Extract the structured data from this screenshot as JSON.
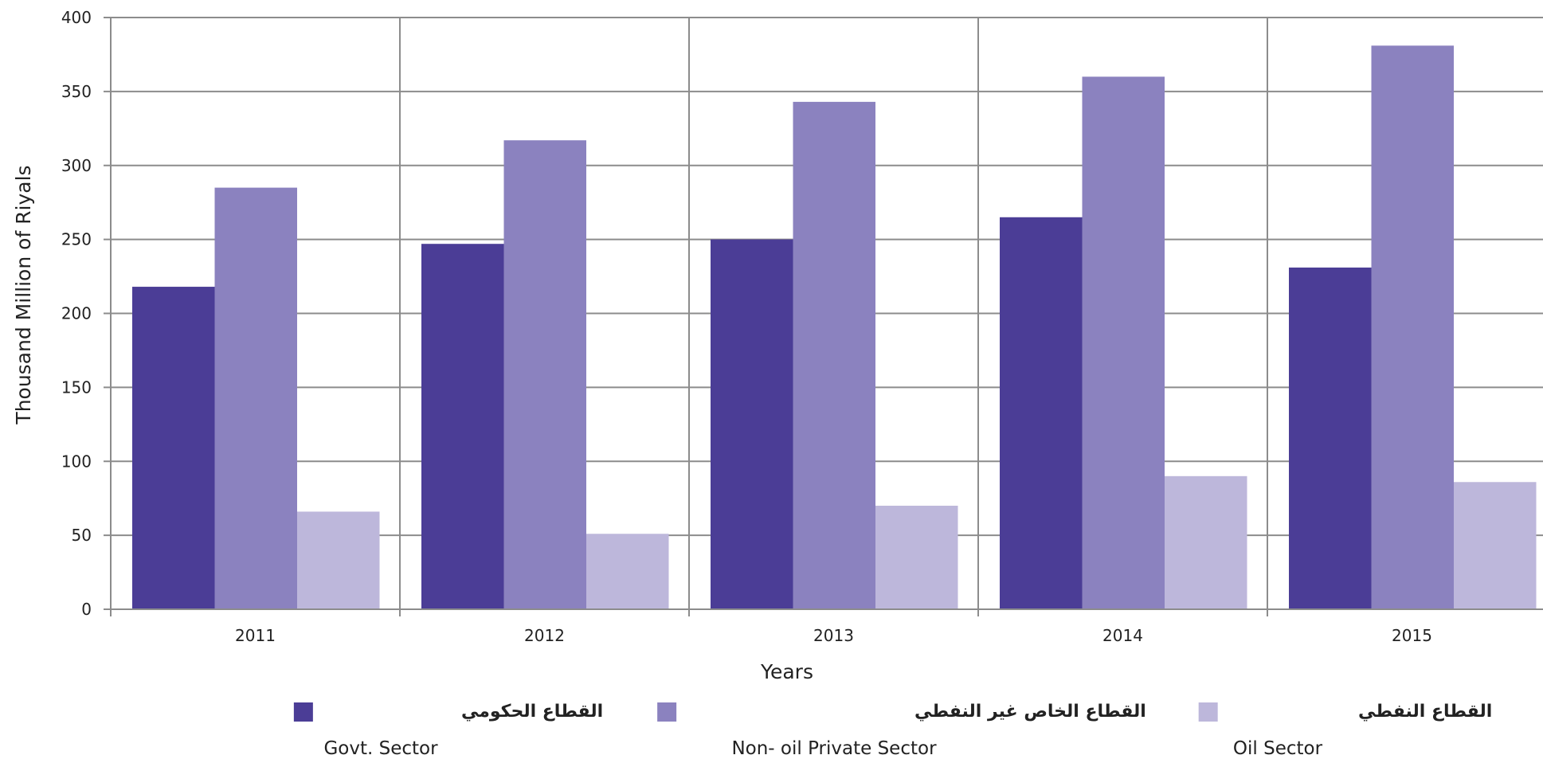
{
  "chart_data": {
    "type": "bar",
    "title": "",
    "xlabel": "Years",
    "ylabel": "Thousand Million of Riyals",
    "categories": [
      "2011",
      "2012",
      "2013",
      "2014",
      "2015"
    ],
    "ylim": [
      0,
      400
    ],
    "yticks": [
      0,
      50,
      100,
      150,
      200,
      250,
      300,
      350,
      400
    ],
    "grid": true,
    "legend_position": "bottom",
    "series": [
      {
        "name": "القطاع الحكومي",
        "name_en": "Govt. Sector",
        "color": "#4b3d96",
        "values": [
          218,
          247,
          250,
          265,
          231
        ]
      },
      {
        "name": "القطاع الخاص غير النفطي",
        "name_en": "Non- oil Private Sector",
        "color": "#8b82bf",
        "values": [
          285,
          317,
          343,
          360,
          381
        ]
      },
      {
        "name": "القطاع النفطي",
        "name_en": "Oil Sector",
        "color": "#bdb7db",
        "values": [
          66,
          51,
          70,
          90,
          86
        ]
      }
    ]
  }
}
